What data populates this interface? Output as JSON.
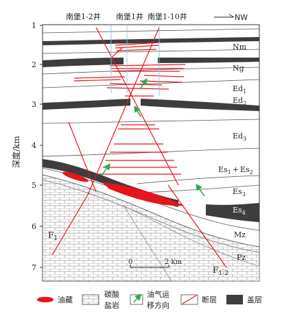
{
  "wells": [
    "南堡1-2井",
    "南堡1井",
    "南堡1-10井"
  ],
  "direction_label": "NW",
  "y_axis": {
    "label": "深度/km",
    "ticks": [
      "1",
      "2",
      "3",
      "4",
      "5",
      "6",
      "7"
    ]
  },
  "formations": {
    "nm": "Nm",
    "ng": "Ng",
    "ed1_base": "Ed",
    "ed1_sub": "1",
    "ed2_base": "Ed",
    "ed2_sub": "2",
    "ed3_base": "Ed",
    "ed3_sub": "3",
    "es12_a": "Es",
    "es12_a_sub": "1",
    "es12_plus": "+",
    "es12_b": "Es",
    "es12_b_sub": "2",
    "es3_base": "Es",
    "es3_sub": "3",
    "es4_base": "Es",
    "es4_sub": "4",
    "mz": "Mz",
    "pz": "Pz"
  },
  "faults": {
    "f1_base": "F",
    "f1_sub": "1",
    "f12_base": "F",
    "f12_sub": "1-2"
  },
  "scale": {
    "zero": "0",
    "length": "2 km"
  },
  "legend": {
    "reservoir": "油藏",
    "carbonate_line1": "碳酸",
    "carbonate_line2": "盐岩",
    "migration_line1": "油气运",
    "migration_line2": "移方向",
    "fault": "断层",
    "caprock": "盖层"
  },
  "colors": {
    "reservoir": "#e8141b",
    "caprock": "#3d3d3d",
    "fault": "#e8141b",
    "migration_arrow": "#2fa84f",
    "well": "#7ec8e8"
  }
}
